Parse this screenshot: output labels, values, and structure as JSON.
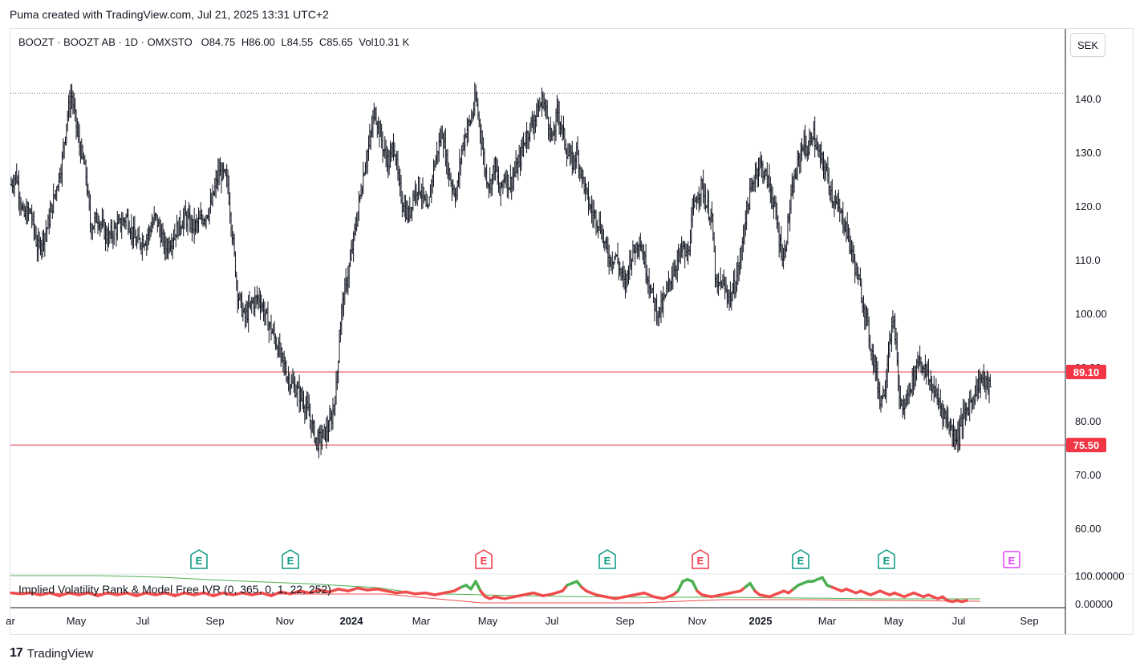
{
  "header": {
    "title": "Puma created with TradingView.com, Jul 21, 2025 13:31 UTC+2"
  },
  "legend": {
    "symbol": "BOOZT · BOOZT AB · 1D · OMXSTO",
    "open_label": "O",
    "open": "84.75",
    "high_label": "H",
    "high": "86.00",
    "low_label": "L",
    "low": "84.55",
    "close_label": "C",
    "close": "85.65",
    "vol_label": "Vol",
    "vol": "10.31 K"
  },
  "currency": "SEK",
  "indicator_label": "Implied Volatility Rank & Model Free IVR (0, 365, 0, 1, 22, 252)",
  "brand": {
    "logo": "17",
    "name": "TradingView"
  },
  "colors": {
    "candle": "#131722",
    "hline": "#e5404f",
    "badge": "#f23645",
    "earn_green": "#089981",
    "earn_red": "#f23645",
    "earn_future": "#e040fb",
    "ivr_red": "#f04c4c",
    "ivr_green": "#4caf50"
  },
  "chart_data": {
    "type": "ohlc",
    "y_axis": {
      "ylim": [
        55,
        144
      ],
      "ticks": [
        "140.0",
        "130.0",
        "120.0",
        "110.0",
        "100.00",
        "90.00",
        "80.00",
        "70.00",
        "60.00"
      ]
    },
    "x_axis": {
      "ticks": [
        "ar",
        "May",
        "Jul",
        "Sep",
        "Nov",
        "2024",
        "Mar",
        "May",
        "Jul",
        "Sep",
        "Nov",
        "2025",
        "Mar",
        "May",
        "Jul",
        "Sep"
      ]
    },
    "horizontal_lines": [
      {
        "value": 89.1,
        "label": "89.10",
        "style": "solid"
      },
      {
        "value": 75.5,
        "label": "75.50",
        "style": "solid"
      },
      {
        "value": 141.0,
        "label": "",
        "style": "dotted"
      }
    ],
    "price_path": [
      [
        0,
        124
      ],
      [
        4,
        126
      ],
      [
        10,
        118
      ],
      [
        16,
        119
      ],
      [
        22,
        112
      ],
      [
        30,
        116
      ],
      [
        38,
        124
      ],
      [
        42,
        128
      ],
      [
        46,
        136
      ],
      [
        50,
        141
      ],
      [
        56,
        132
      ],
      [
        62,
        126
      ],
      [
        66,
        116
      ],
      [
        72,
        118
      ],
      [
        80,
        114
      ],
      [
        88,
        116
      ],
      [
        96,
        118
      ],
      [
        104,
        113
      ],
      [
        112,
        114
      ],
      [
        120,
        118
      ],
      [
        128,
        112
      ],
      [
        136,
        115
      ],
      [
        144,
        118
      ],
      [
        152,
        116
      ],
      [
        160,
        118
      ],
      [
        166,
        120
      ],
      [
        172,
        126
      ],
      [
        176,
        126
      ],
      [
        180,
        124
      ],
      [
        184,
        114
      ],
      [
        188,
        104
      ],
      [
        194,
        99
      ],
      [
        200,
        102
      ],
      [
        206,
        103
      ],
      [
        212,
        99
      ],
      [
        218,
        96
      ],
      [
        224,
        92
      ],
      [
        230,
        88
      ],
      [
        236,
        86
      ],
      [
        242,
        84
      ],
      [
        246,
        82
      ],
      [
        250,
        79
      ],
      [
        254,
        76
      ],
      [
        258,
        77
      ],
      [
        262,
        78
      ],
      [
        266,
        80
      ],
      [
        270,
        86
      ],
      [
        274,
        100
      ],
      [
        278,
        105
      ],
      [
        282,
        110
      ],
      [
        286,
        116
      ],
      [
        290,
        122
      ],
      [
        294,
        128
      ],
      [
        298,
        132
      ],
      [
        302,
        138
      ],
      [
        306,
        134
      ],
      [
        310,
        130
      ],
      [
        314,
        128
      ],
      [
        318,
        132
      ],
      [
        322,
        124
      ],
      [
        326,
        120
      ],
      [
        330,
        118
      ],
      [
        334,
        122
      ],
      [
        338,
        124
      ],
      [
        342,
        122
      ],
      [
        346,
        118
      ],
      [
        350,
        126
      ],
      [
        354,
        130
      ],
      [
        358,
        134
      ],
      [
        362,
        128
      ],
      [
        366,
        124
      ],
      [
        370,
        122
      ],
      [
        374,
        130
      ],
      [
        378,
        134
      ],
      [
        382,
        136
      ],
      [
        386,
        140
      ],
      [
        390,
        134
      ],
      [
        394,
        126
      ],
      [
        398,
        124
      ],
      [
        402,
        128
      ],
      [
        406,
        122
      ],
      [
        410,
        126
      ],
      [
        414,
        124
      ],
      [
        418,
        126
      ],
      [
        422,
        128
      ],
      [
        426,
        132
      ],
      [
        430,
        134
      ],
      [
        434,
        136
      ],
      [
        438,
        138
      ],
      [
        442,
        140
      ],
      [
        446,
        136
      ],
      [
        450,
        132
      ],
      [
        454,
        138
      ],
      [
        458,
        134
      ],
      [
        462,
        130
      ],
      [
        466,
        128
      ],
      [
        470,
        130
      ],
      [
        474,
        126
      ],
      [
        478,
        122
      ],
      [
        482,
        119
      ],
      [
        486,
        118
      ],
      [
        490,
        116
      ],
      [
        494,
        112
      ],
      [
        498,
        110
      ],
      [
        502,
        111
      ],
      [
        506,
        108
      ],
      [
        510,
        105
      ],
      [
        514,
        110
      ],
      [
        518,
        112
      ],
      [
        522,
        114
      ],
      [
        526,
        110
      ],
      [
        530,
        106
      ],
      [
        534,
        102
      ],
      [
        538,
        100
      ],
      [
        542,
        102
      ],
      [
        546,
        105
      ],
      [
        550,
        108
      ],
      [
        554,
        110
      ],
      [
        558,
        112
      ],
      [
        562,
        110
      ],
      [
        566,
        118
      ],
      [
        570,
        122
      ],
      [
        574,
        124
      ],
      [
        578,
        120
      ],
      [
        582,
        118
      ],
      [
        586,
        104
      ],
      [
        590,
        106
      ],
      [
        594,
        104
      ],
      [
        598,
        103
      ],
      [
        602,
        106
      ],
      [
        606,
        110
      ],
      [
        610,
        118
      ],
      [
        614,
        122
      ],
      [
        618,
        126
      ],
      [
        622,
        128
      ],
      [
        626,
        126
      ],
      [
        630,
        124
      ],
      [
        634,
        120
      ],
      [
        638,
        114
      ],
      [
        642,
        110
      ],
      [
        646,
        118
      ],
      [
        650,
        124
      ],
      [
        654,
        128
      ],
      [
        658,
        132
      ],
      [
        662,
        130
      ],
      [
        666,
        134
      ],
      [
        670,
        130
      ],
      [
        674,
        128
      ],
      [
        678,
        126
      ],
      [
        682,
        122
      ],
      [
        686,
        120
      ],
      [
        690,
        118
      ],
      [
        694,
        116
      ],
      [
        698,
        112
      ],
      [
        702,
        108
      ],
      [
        706,
        104
      ],
      [
        710,
        100
      ],
      [
        714,
        94
      ],
      [
        718,
        90
      ],
      [
        722,
        84
      ],
      [
        726,
        86
      ],
      [
        730,
        96
      ],
      [
        734,
        98
      ],
      [
        738,
        84
      ],
      [
        742,
        82
      ],
      [
        746,
        86
      ],
      [
        750,
        88
      ],
      [
        754,
        92
      ],
      [
        758,
        90
      ],
      [
        762,
        88
      ],
      [
        766,
        86
      ],
      [
        770,
        84
      ],
      [
        774,
        82
      ],
      [
        778,
        80
      ],
      [
        782,
        78
      ],
      [
        786,
        77
      ],
      [
        790,
        80
      ],
      [
        794,
        82
      ],
      [
        798,
        84
      ],
      [
        802,
        86
      ],
      [
        806,
        88
      ],
      [
        810,
        87
      ],
      [
        814,
        86
      ]
    ],
    "ivr_path": [
      [
        0,
        12
      ],
      [
        8,
        11
      ],
      [
        16,
        12
      ],
      [
        24,
        10
      ],
      [
        32,
        12
      ],
      [
        40,
        9
      ],
      [
        48,
        12
      ],
      [
        56,
        10
      ],
      [
        64,
        12
      ],
      [
        72,
        9
      ],
      [
        80,
        12
      ],
      [
        88,
        10
      ],
      [
        96,
        12
      ],
      [
        104,
        9
      ],
      [
        112,
        12
      ],
      [
        120,
        10
      ],
      [
        128,
        12
      ],
      [
        136,
        9
      ],
      [
        144,
        12
      ],
      [
        152,
        10
      ],
      [
        160,
        12
      ],
      [
        168,
        9
      ],
      [
        176,
        12
      ],
      [
        184,
        10
      ],
      [
        192,
        12
      ],
      [
        200,
        10
      ],
      [
        208,
        12
      ],
      [
        216,
        9
      ],
      [
        224,
        13
      ],
      [
        232,
        11
      ],
      [
        240,
        14
      ],
      [
        248,
        12
      ],
      [
        256,
        15
      ],
      [
        264,
        13
      ],
      [
        272,
        16
      ],
      [
        280,
        14
      ],
      [
        288,
        17
      ],
      [
        296,
        15
      ],
      [
        304,
        16
      ],
      [
        312,
        14
      ],
      [
        320,
        12
      ],
      [
        328,
        13
      ],
      [
        336,
        11
      ],
      [
        344,
        12
      ],
      [
        352,
        10
      ],
      [
        360,
        12
      ],
      [
        368,
        14
      ],
      [
        374,
        18
      ],
      [
        378,
        20
      ],
      [
        382,
        16
      ],
      [
        386,
        24
      ],
      [
        390,
        14
      ],
      [
        394,
        8
      ],
      [
        398,
        6
      ],
      [
        402,
        8
      ],
      [
        410,
        6
      ],
      [
        418,
        8
      ],
      [
        426,
        10
      ],
      [
        434,
        12
      ],
      [
        442,
        9
      ],
      [
        450,
        11
      ],
      [
        458,
        14
      ],
      [
        462,
        20
      ],
      [
        466,
        22
      ],
      [
        470,
        24
      ],
      [
        474,
        18
      ],
      [
        478,
        14
      ],
      [
        482,
        12
      ],
      [
        486,
        10
      ],
      [
        494,
        8
      ],
      [
        502,
        6
      ],
      [
        510,
        8
      ],
      [
        518,
        10
      ],
      [
        526,
        12
      ],
      [
        534,
        8
      ],
      [
        542,
        6
      ],
      [
        550,
        10
      ],
      [
        554,
        14
      ],
      [
        558,
        24
      ],
      [
        562,
        26
      ],
      [
        566,
        24
      ],
      [
        570,
        14
      ],
      [
        574,
        10
      ],
      [
        582,
        8
      ],
      [
        590,
        10
      ],
      [
        598,
        12
      ],
      [
        606,
        14
      ],
      [
        610,
        18
      ],
      [
        614,
        22
      ],
      [
        618,
        14
      ],
      [
        622,
        10
      ],
      [
        630,
        8
      ],
      [
        638,
        12
      ],
      [
        642,
        14
      ],
      [
        646,
        12
      ],
      [
        650,
        16
      ],
      [
        654,
        20
      ],
      [
        658,
        22
      ],
      [
        662,
        24
      ],
      [
        666,
        24
      ],
      [
        670,
        26
      ],
      [
        674,
        28
      ],
      [
        678,
        20
      ],
      [
        682,
        18
      ],
      [
        686,
        16
      ],
      [
        690,
        14
      ],
      [
        694,
        16
      ],
      [
        698,
        14
      ],
      [
        702,
        12
      ],
      [
        706,
        14
      ],
      [
        710,
        12
      ],
      [
        714,
        10
      ],
      [
        718,
        12
      ],
      [
        722,
        14
      ],
      [
        726,
        12
      ],
      [
        730,
        10
      ],
      [
        734,
        12
      ],
      [
        738,
        10
      ],
      [
        742,
        8
      ],
      [
        746,
        10
      ],
      [
        750,
        12
      ],
      [
        754,
        10
      ],
      [
        758,
        8
      ],
      [
        762,
        10
      ],
      [
        766,
        8
      ],
      [
        770,
        6
      ],
      [
        774,
        8
      ],
      [
        778,
        4
      ],
      [
        782,
        3
      ],
      [
        786,
        4
      ],
      [
        790,
        3
      ],
      [
        794,
        4
      ]
    ],
    "earnings": [
      {
        "x": 248,
        "label": "E",
        "kind": "green"
      },
      {
        "x": 362,
        "label": "E",
        "kind": "green"
      },
      {
        "x": 603,
        "label": "E",
        "kind": "red"
      },
      {
        "x": 757,
        "label": "E",
        "kind": "green"
      },
      {
        "x": 873,
        "label": "E",
        "kind": "red"
      },
      {
        "x": 998,
        "label": "E",
        "kind": "green"
      },
      {
        "x": 1105,
        "label": "E",
        "kind": "green"
      },
      {
        "x": 1261,
        "label": "E",
        "kind": "future"
      }
    ],
    "ivr_axis": {
      "ticks": [
        "100.00000",
        "0.00000"
      ]
    }
  }
}
